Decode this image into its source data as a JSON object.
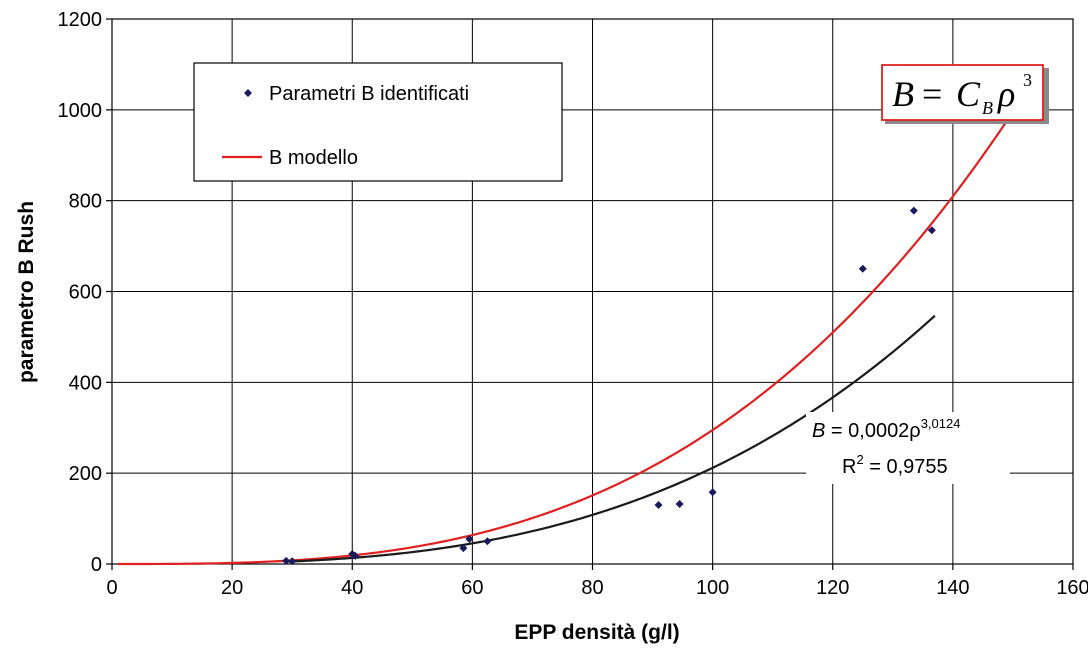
{
  "chart_data": {
    "type": "scatter",
    "xlabel": "EPP densità (g/l)",
    "ylabel": "parametro B Rush",
    "xlim": [
      0,
      160
    ],
    "ylim": [
      0,
      1200
    ],
    "x_ticks": [
      "0",
      "20",
      "40",
      "60",
      "80",
      "100",
      "120",
      "140",
      "160"
    ],
    "y_ticks": [
      "0",
      "200",
      "400",
      "600",
      "800",
      "1000",
      "1200"
    ],
    "grid": true,
    "legend_placement": "top-left",
    "series": [
      {
        "name": "Parametri B identificati",
        "kind": "scatter",
        "color": "#1a1a5e",
        "x": [
          29,
          30,
          40,
          40.5,
          58.5,
          59.5,
          62.5,
          91,
          94.5,
          100,
          125,
          133.5,
          136.5
        ],
        "y": [
          7,
          6,
          22,
          18,
          35,
          55,
          50,
          130,
          132,
          158,
          650,
          778,
          735
        ]
      },
      {
        "name": "B modello",
        "kind": "line",
        "color": "#e02020",
        "model": {
          "coefficient": 0.000295,
          "exponent": 3,
          "x_range": [
            1,
            150
          ]
        }
      },
      {
        "name": "",
        "kind": "trendline",
        "color": "#1a1a1a",
        "model": {
          "coefficient": 0.0002,
          "exponent": 3.0124,
          "x_range": [
            29,
            137
          ]
        }
      }
    ],
    "annotations": {
      "fit_equation_prefix": "B",
      "fit_equation_body": " = 0,0002ρ",
      "fit_equation_exponent": "3,0124",
      "r_squared_label": "R",
      "r_squared_exponent": "2",
      "r_squared_value": " = 0,9755",
      "model_formula": {
        "lhs": "B",
        "equals": "=",
        "coefficient": "C",
        "subscript": "B",
        "variable": "ρ",
        "exponent": "3"
      }
    }
  }
}
